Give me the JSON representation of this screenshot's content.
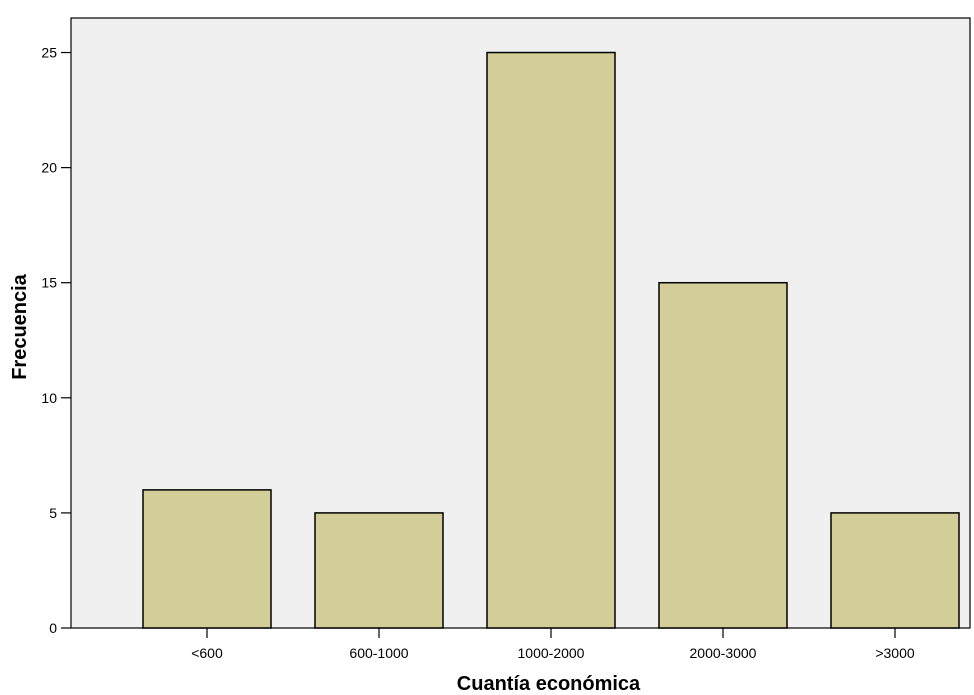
{
  "chart_data": {
    "type": "bar",
    "title": "",
    "xlabel": "Cuantía económica",
    "ylabel": "Frecuencia",
    "categories": [
      "<600",
      "600-1000",
      "1000-2000",
      "2000-3000",
      ">3000"
    ],
    "values": [
      6,
      5,
      25,
      15,
      5
    ],
    "ylim": [
      0,
      26.5
    ],
    "yticks": [
      0,
      5,
      10,
      15,
      20,
      25
    ],
    "grid": false,
    "colors": {
      "plot_background": "#f0f0f0",
      "bar_fill": "#d3ce97",
      "bar_stroke": "#000000"
    }
  }
}
